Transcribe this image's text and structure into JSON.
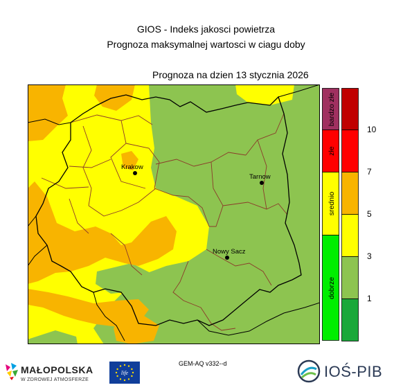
{
  "header": {
    "title": "GIOS - Indeks jakosci powietrza",
    "subtitle": "Prognoza maksymalnej wartosci w ciagu doby",
    "date_line": "Prognoza na dzien  13 stycznia 2026"
  },
  "cities": [
    {
      "name": "Krakow"
    },
    {
      "name": "Tarnow"
    },
    {
      "name": "Nowy Sacz"
    }
  ],
  "colors": {
    "dark_green": "#1aa83a",
    "green": "#8dc450",
    "yellow": "#ffff00",
    "orange": "#f8b400",
    "red": "#ff0000",
    "dark_red": "#c00000",
    "purple": "#a03060",
    "border_admin": "#8b3a2a",
    "border_outer": "#000000"
  },
  "legend": {
    "categories": [
      {
        "label": "bardzo złe",
        "color": "#a03060"
      },
      {
        "label": "złe",
        "color": "#ff0000"
      },
      {
        "label": "srednio",
        "color": "#ffff00"
      },
      {
        "label": "dobrze",
        "color": "#00ee00"
      }
    ],
    "scale_colors": [
      "#c00000",
      "#ff0000",
      "#f8b400",
      "#ffff00",
      "#8dc450",
      "#1aa83a"
    ],
    "scale_values": [
      "10",
      "7",
      "5",
      "3",
      "1"
    ]
  },
  "footer": {
    "model": "GEM-AQ v332--d",
    "malopolska_name": "MAŁOPOLSKA",
    "malopolska_tagline": "W ZDROWEJ ATMOSFERZE",
    "ios_name": "IOŚ-PIB",
    "eu_flag_text": "life"
  }
}
